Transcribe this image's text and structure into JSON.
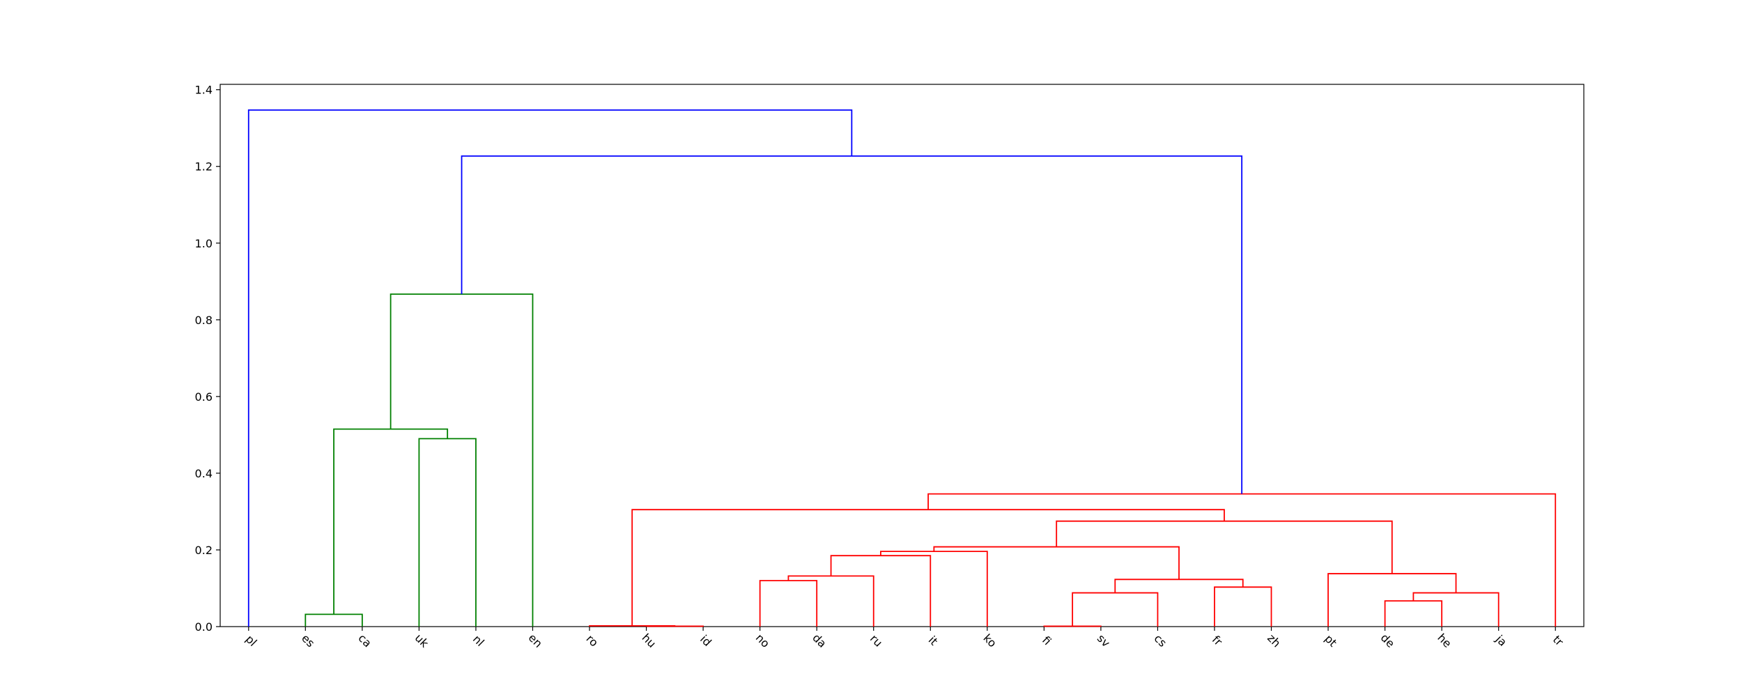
{
  "chart_data": {
    "type": "dendrogram",
    "leaves": [
      "pl",
      "es",
      "ca",
      "uk",
      "nl",
      "en",
      "ro",
      "hu",
      "id",
      "no",
      "da",
      "ru",
      "it",
      "ko",
      "fi",
      "sv",
      "cs",
      "fr",
      "zh",
      "pt",
      "de",
      "he",
      "ja",
      "tr"
    ],
    "links": [
      {
        "children": [
          7,
          8
        ],
        "height": 0.001,
        "color": "#ff0000"
      },
      {
        "children": [
          6,
          24
        ],
        "height": 0.002,
        "color": "#ff0000"
      },
      {
        "children": [
          14,
          15
        ],
        "height": 0.001,
        "color": "#ff0000"
      },
      {
        "children": [
          1,
          2
        ],
        "height": 0.032,
        "color": "#008000"
      },
      {
        "children": [
          20,
          21
        ],
        "height": 0.067,
        "color": "#ff0000"
      },
      {
        "children": [
          26,
          16
        ],
        "height": 0.088,
        "color": "#ff0000"
      },
      {
        "children": [
          28,
          22
        ],
        "height": 0.088,
        "color": "#ff0000"
      },
      {
        "children": [
          17,
          18
        ],
        "height": 0.103,
        "color": "#ff0000"
      },
      {
        "children": [
          9,
          10
        ],
        "height": 0.12,
        "color": "#ff0000"
      },
      {
        "children": [
          29,
          31
        ],
        "height": 0.123,
        "color": "#ff0000"
      },
      {
        "children": [
          32,
          11
        ],
        "height": 0.132,
        "color": "#ff0000"
      },
      {
        "children": [
          19,
          30
        ],
        "height": 0.138,
        "color": "#ff0000"
      },
      {
        "children": [
          34,
          12
        ],
        "height": 0.185,
        "color": "#ff0000"
      },
      {
        "children": [
          36,
          13
        ],
        "height": 0.196,
        "color": "#ff0000"
      },
      {
        "children": [
          37,
          33
        ],
        "height": 0.208,
        "color": "#ff0000"
      },
      {
        "children": [
          38,
          35
        ],
        "height": 0.275,
        "color": "#ff0000"
      },
      {
        "children": [
          25,
          39
        ],
        "height": 0.305,
        "color": "#ff0000"
      },
      {
        "children": [
          40,
          23
        ],
        "height": 0.346,
        "color": "#ff0000"
      },
      {
        "children": [
          3,
          4
        ],
        "height": 0.49,
        "color": "#008000"
      },
      {
        "children": [
          27,
          42
        ],
        "height": 0.515,
        "color": "#008000"
      },
      {
        "children": [
          43,
          5
        ],
        "height": 0.867,
        "color": "#008000"
      },
      {
        "children": [
          44,
          41
        ],
        "height": 1.227,
        "color": "#0000ff"
      },
      {
        "children": [
          0,
          45
        ],
        "height": 1.347,
        "color": "#0000ff"
      }
    ],
    "ylim": [
      0,
      1.414
    ],
    "yticks": [
      {
        "value": 0,
        "label": "0.0"
      },
      0.2,
      0.4,
      0.6,
      0.8,
      {
        "value": 1,
        "label": "1.0"
      },
      1.2,
      1.4
    ]
  }
}
